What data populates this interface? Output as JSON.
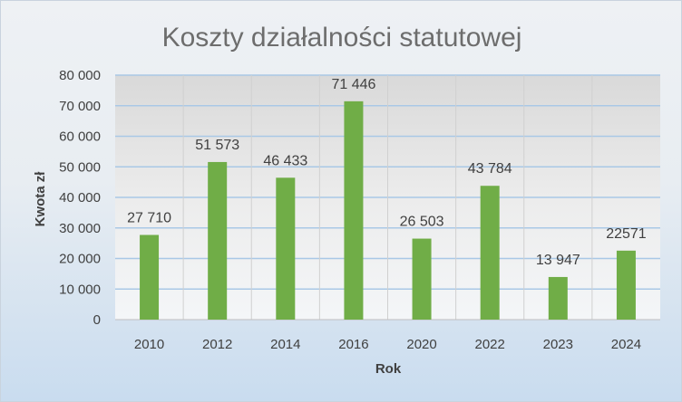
{
  "chart_data": {
    "type": "bar",
    "title": "Koszty działalności statutowej",
    "xlabel": "Rok",
    "ylabel": "Kwota zł",
    "categories": [
      "2010",
      "2012",
      "2014",
      "2016",
      "2020",
      "2022",
      "2023",
      "2024"
    ],
    "values": [
      27710,
      51573,
      46433,
      71446,
      26503,
      43784,
      13947,
      22571
    ],
    "data_labels": [
      "27 710",
      "51 573",
      "46 433",
      "71 446",
      "26 503",
      "43 784",
      "13 947",
      "22571"
    ],
    "ylim": [
      0,
      80000
    ],
    "yticks": [
      0,
      10000,
      20000,
      30000,
      40000,
      50000,
      60000,
      70000,
      80000
    ],
    "ytick_labels": [
      "0",
      "10 000",
      "20 000",
      "30 000",
      "40 000",
      "50 000",
      "60 000",
      "70 000",
      "80 000"
    ],
    "grid": true,
    "legend": false,
    "colors": {
      "bar": "#70ad47",
      "gridline": "#a9c8e6",
      "plot_bg": "#e4e4e4"
    }
  }
}
